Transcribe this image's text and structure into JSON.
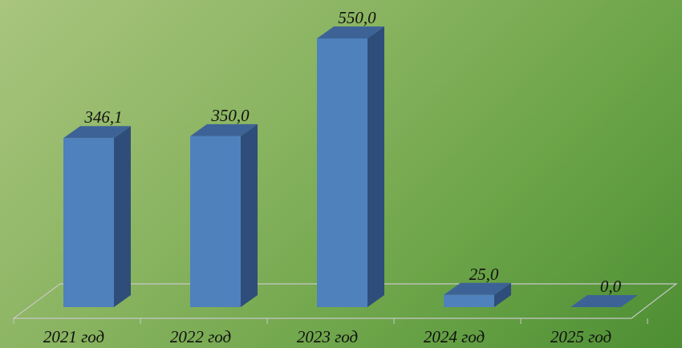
{
  "chart_data": {
    "type": "bar",
    "style": "3d-column",
    "categories": [
      "2021 год",
      "2022 год",
      "2023 год",
      "2024 год",
      "2025 год"
    ],
    "values": [
      346.1,
      350.0,
      550.0,
      25.0,
      0.0
    ],
    "data_labels": [
      "346,1",
      "350,0",
      "550,0",
      "25,0",
      "0,0"
    ],
    "ylim": [
      0,
      550
    ],
    "grid": false,
    "legend": "none",
    "colors": {
      "bar_front": "#4f81bd",
      "bar_side": "#2f4d7a",
      "bar_top": "#3d6396",
      "floor_line": "#c8c8c8"
    }
  }
}
